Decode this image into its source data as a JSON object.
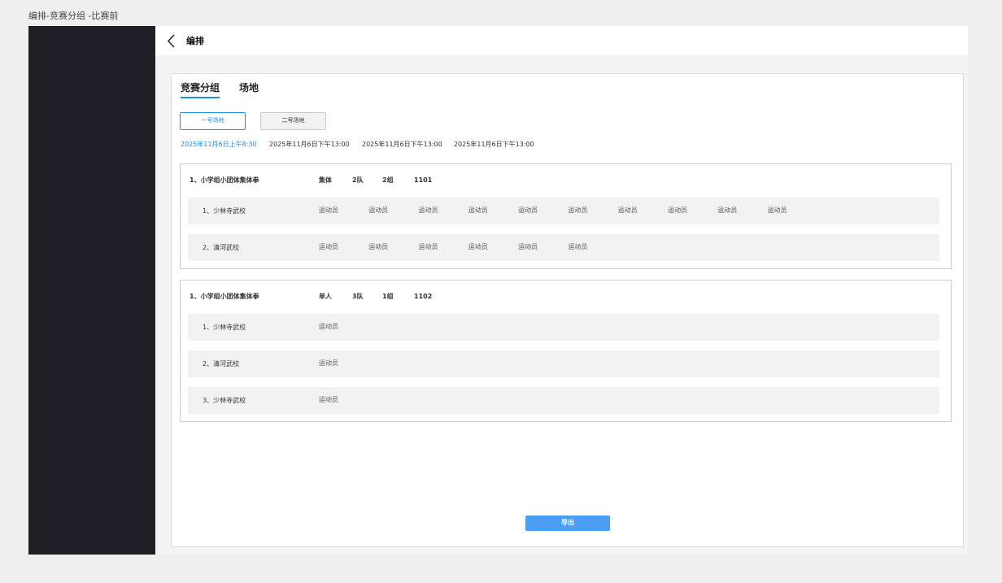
{
  "page_title": "编排-竞赛分组 -比赛前",
  "header": {
    "title": "编排"
  },
  "tabs": [
    "竞赛分组",
    "场地"
  ],
  "venues": [
    "一号场地",
    "二号场地"
  ],
  "sessions": [
    "2025年11月6日上午8:30",
    "2025年11月6日下午13:00",
    "2025年11月6日下午13:00",
    "2025年11月6日下午13:00"
  ],
  "groups": [
    {
      "name": "1、小学组小团体集体拳",
      "kind": "集体",
      "teams": "2队",
      "groups": "2组",
      "code": "1101",
      "rows": [
        {
          "label": "1、少林寺武校",
          "athletes": [
            "运动员",
            "运动员",
            "运动员",
            "运动员",
            "运动员",
            "运动员",
            "运动员",
            "运动员",
            "运动员",
            "运动员"
          ]
        },
        {
          "label": "2、清河武校",
          "athletes": [
            "运动员",
            "运动员",
            "运动员",
            "运动员",
            "运动员",
            "运动员"
          ]
        }
      ]
    },
    {
      "name": "1、小学组小团体集体拳",
      "kind": "单人",
      "teams": "3队",
      "groups": "1组",
      "code": "1102",
      "rows": [
        {
          "label": "1、少林寺武校",
          "athletes": [
            "运动员"
          ]
        },
        {
          "label": "2、清河武校",
          "athletes": [
            "运动员"
          ]
        },
        {
          "label": "3、少林寺武校",
          "athletes": [
            "运动员"
          ]
        }
      ]
    }
  ],
  "export": "导出"
}
